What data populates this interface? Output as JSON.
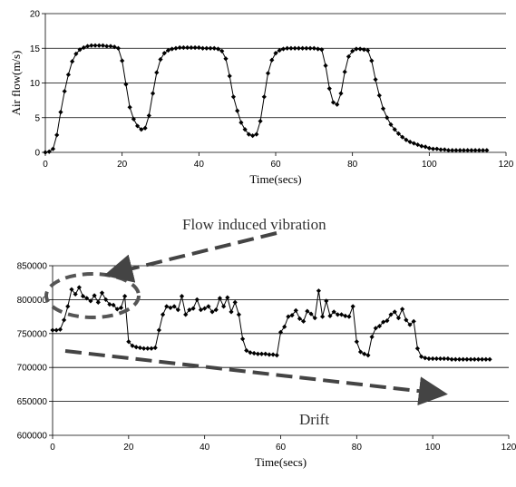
{
  "chart_data": [
    {
      "type": "line",
      "xlabel": "Time(secs)",
      "ylabel": "Air flow(m/s)",
      "xlim": [
        0,
        120
      ],
      "ylim": [
        0,
        20
      ],
      "xticks": [
        "0",
        "20",
        "40",
        "60",
        "80",
        "100",
        "120"
      ],
      "yticks": [
        "0",
        "5",
        "10",
        "15",
        "20"
      ],
      "grid": "horizontal",
      "marker": "diamond",
      "series": [
        {
          "x": [
            0,
            1,
            2,
            3,
            4,
            5,
            6,
            7,
            8,
            9,
            10,
            11,
            12,
            13,
            14,
            15,
            16,
            17,
            18,
            19,
            20,
            21,
            22,
            23,
            24,
            25,
            26,
            27,
            28,
            29,
            30,
            31,
            32,
            33,
            34,
            35,
            36,
            37,
            38,
            39,
            40,
            41,
            42,
            43,
            44,
            45,
            46,
            47,
            48,
            49,
            50,
            51,
            52,
            53,
            54,
            55,
            56,
            57,
            58,
            59,
            60,
            61,
            62,
            63,
            64,
            65,
            66,
            67,
            68,
            69,
            70,
            71,
            72,
            73,
            74,
            75,
            76,
            77,
            78,
            79,
            80,
            81,
            82,
            83,
            84,
            85,
            86,
            87,
            88,
            89,
            90,
            91,
            92,
            93,
            94,
            95,
            96,
            97,
            98,
            99,
            100,
            101,
            102,
            103,
            104,
            105,
            106,
            107,
            108,
            109,
            110,
            111,
            112,
            113,
            114,
            115
          ],
          "y": [
            0,
            0.1,
            0.5,
            2.5,
            5.8,
            8.8,
            11.2,
            13.1,
            14.2,
            14.8,
            15.1,
            15.3,
            15.4,
            15.4,
            15.4,
            15.4,
            15.3,
            15.3,
            15.2,
            15.0,
            13.2,
            9.8,
            6.5,
            4.8,
            3.8,
            3.3,
            3.5,
            5.3,
            8.5,
            11.5,
            13.4,
            14.3,
            14.7,
            14.9,
            15.0,
            15.1,
            15.1,
            15.1,
            15.1,
            15.1,
            15.1,
            15.0,
            15.0,
            15.0,
            15.0,
            14.9,
            14.6,
            13.5,
            11.0,
            8.0,
            6.0,
            4.3,
            3.3,
            2.6,
            2.4,
            2.6,
            4.5,
            8.0,
            11.4,
            13.3,
            14.3,
            14.7,
            14.9,
            15.0,
            15.0,
            15.0,
            15.0,
            15.0,
            15.0,
            15.0,
            15.0,
            14.9,
            14.8,
            12.5,
            9.2,
            7.2,
            6.9,
            8.5,
            11.6,
            13.8,
            14.6,
            14.9,
            14.9,
            14.8,
            14.7,
            13.2,
            10.5,
            8.2,
            6.3,
            5.0,
            4.0,
            3.3,
            2.7,
            2.2,
            1.8,
            1.5,
            1.3,
            1.1,
            0.9,
            0.8,
            0.6,
            0.5,
            0.5,
            0.4,
            0.4,
            0.3,
            0.3,
            0.3,
            0.3,
            0.3,
            0.3,
            0.3,
            0.3,
            0.3,
            0.3,
            0.3
          ]
        }
      ]
    },
    {
      "type": "line",
      "xlabel": "Time(secs)",
      "ylabel": "",
      "xlim": [
        0,
        120
      ],
      "ylim": [
        600000,
        850000
      ],
      "xticks": [
        "0",
        "20",
        "40",
        "60",
        "80",
        "100",
        "120"
      ],
      "yticks": [
        "600000",
        "650000",
        "700000",
        "750000",
        "800000",
        "850000"
      ],
      "grid": "horizontal",
      "marker": "diamond",
      "series": [
        {
          "x": [
            0,
            1,
            2,
            3,
            4,
            5,
            6,
            7,
            8,
            9,
            10,
            11,
            12,
            13,
            14,
            15,
            16,
            17,
            18,
            19,
            20,
            21,
            22,
            23,
            24,
            25,
            26,
            27,
            28,
            29,
            30,
            31,
            32,
            33,
            34,
            35,
            36,
            37,
            38,
            39,
            40,
            41,
            42,
            43,
            44,
            45,
            46,
            47,
            48,
            49,
            50,
            51,
            52,
            53,
            54,
            55,
            56,
            57,
            58,
            59,
            60,
            61,
            62,
            63,
            64,
            65,
            66,
            67,
            68,
            69,
            70,
            71,
            72,
            73,
            74,
            75,
            76,
            77,
            78,
            79,
            80,
            81,
            82,
            83,
            84,
            85,
            86,
            87,
            88,
            89,
            90,
            91,
            92,
            93,
            94,
            95,
            96,
            97,
            98,
            99,
            100,
            101,
            102,
            103,
            104,
            105,
            106,
            107,
            108,
            109,
            110,
            111,
            112,
            113,
            114,
            115
          ],
          "y": [
            755000,
            755000,
            756000,
            770000,
            790000,
            815000,
            808000,
            818000,
            805000,
            802000,
            798000,
            806000,
            796000,
            810000,
            800000,
            793000,
            792000,
            786000,
            788000,
            805000,
            738000,
            732000,
            730000,
            729000,
            728000,
            728000,
            728000,
            729000,
            755000,
            778000,
            790000,
            788000,
            790000,
            785000,
            805000,
            778000,
            785000,
            787000,
            800000,
            785000,
            787000,
            790000,
            782000,
            785000,
            802000,
            790000,
            803000,
            782000,
            796000,
            778000,
            742000,
            725000,
            722000,
            721000,
            720000,
            720000,
            720000,
            719000,
            719000,
            718000,
            752000,
            760000,
            775000,
            777000,
            784000,
            772000,
            768000,
            783000,
            779000,
            773000,
            813000,
            775000,
            798000,
            776000,
            782000,
            778000,
            778000,
            776000,
            775000,
            790000,
            738000,
            723000,
            720000,
            718000,
            745000,
            758000,
            761000,
            767000,
            769000,
            778000,
            782000,
            773000,
            786000,
            770000,
            763000,
            768000,
            728000,
            716000,
            714000,
            713000,
            713000,
            713000,
            713000,
            713000,
            713000,
            712000,
            712000,
            712000,
            712000,
            712000,
            712000,
            712000,
            712000,
            712000,
            712000,
            712000
          ]
        }
      ],
      "annotations": [
        "Flow induced vibration",
        "Drift"
      ]
    }
  ]
}
